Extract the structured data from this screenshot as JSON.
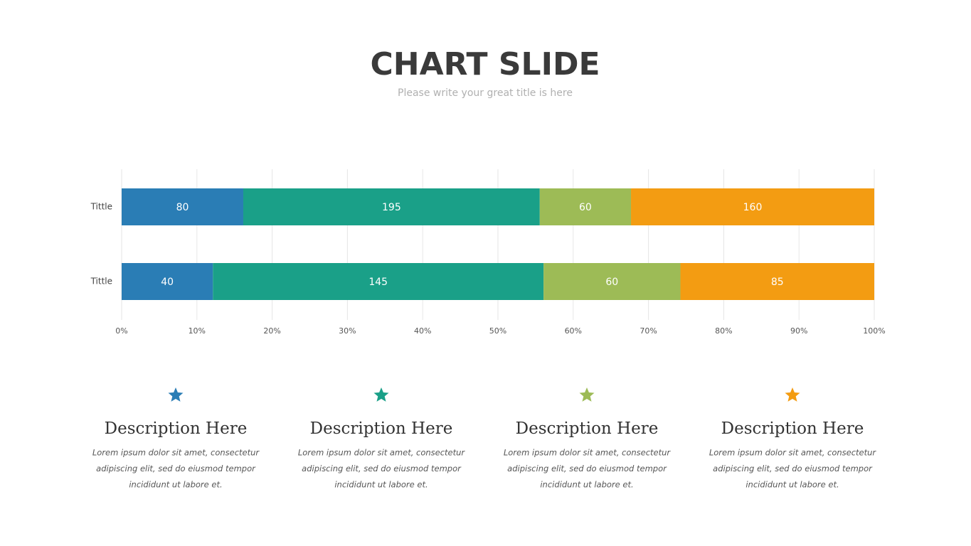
{
  "chart_data": {
    "type": "stacked-bar-horizontal",
    "stacked": "percent",
    "title": "CHART SLIDE",
    "subtitle": "Please write your great title is here",
    "categories": [
      "Tittle",
      "Tittle"
    ],
    "series": [
      {
        "color": "#2a7db5",
        "values": [
          80,
          40
        ]
      },
      {
        "color": "#1aa088",
        "values": [
          195,
          145
        ]
      },
      {
        "color": "#9dbb56",
        "values": [
          60,
          60
        ]
      },
      {
        "color": "#f39c12",
        "values": [
          160,
          85
        ]
      }
    ],
    "xlim": [
      0,
      100
    ],
    "xticks": [
      {
        "value": 0,
        "label": "0%"
      },
      {
        "value": 10,
        "label": "10%"
      },
      {
        "value": 20,
        "label": "20%"
      },
      {
        "value": 30,
        "label": "30%"
      },
      {
        "value": 40,
        "label": "40%"
      },
      {
        "value": 50,
        "label": "50%"
      },
      {
        "value": 60,
        "label": "60%"
      },
      {
        "value": 70,
        "label": "70%"
      },
      {
        "value": 80,
        "label": "80%"
      },
      {
        "value": 90,
        "label": "90%"
      },
      {
        "value": 100,
        "label": "100%"
      }
    ],
    "grid": true
  },
  "cards": [
    {
      "heading": "Description Here",
      "lines": [
        "Lorem  ipsum dolor sit amet, consectetur",
        "adipiscing elit, sed do eiusmod tempor",
        "incididunt ut labore et."
      ]
    },
    {
      "heading": "Description Here",
      "lines": [
        "Lorem  ipsum dolor sit amet, consectetur",
        "adipiscing elit, sed do eiusmod tempor",
        "incididunt ut labore et."
      ]
    },
    {
      "heading": "Description Here",
      "lines": [
        "Lorem  ipsum dolor sit amet, consectetur",
        "adipiscing elit, sed do eiusmod tempor",
        "incididunt ut labore et."
      ]
    },
    {
      "heading": "Description Here",
      "lines": [
        "Lorem  ipsum dolor sit amet, consectetur",
        "adipiscing elit, sed do eiusmod tempor",
        "incididunt ut labore et."
      ]
    }
  ]
}
